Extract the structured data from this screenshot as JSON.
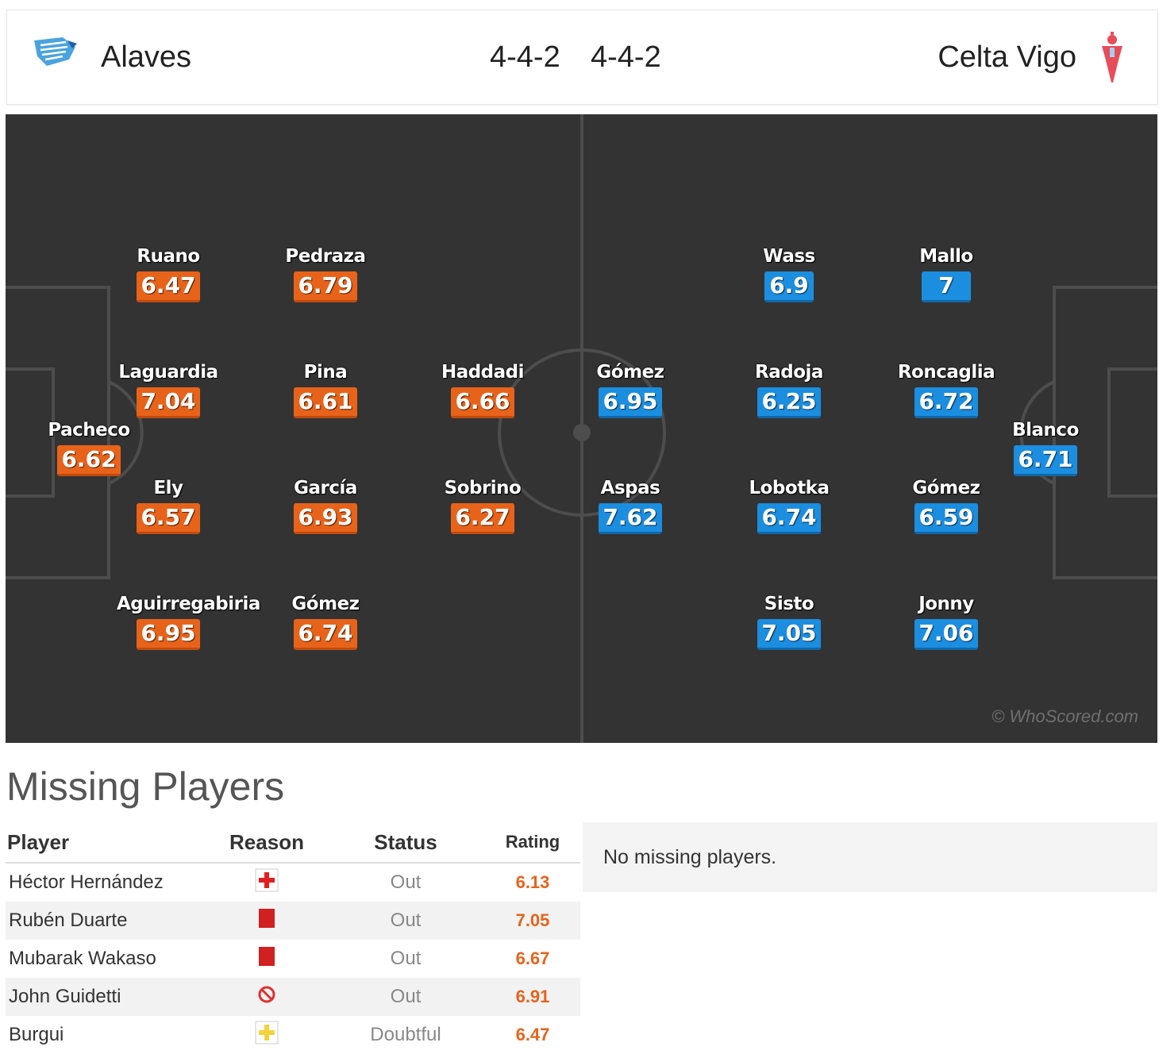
{
  "header": {
    "home_team": "Alaves",
    "home_formation": "4-4-2",
    "away_formation": "4-4-2",
    "away_team": "Celta Vigo"
  },
  "pitch": {
    "watermark": "© WhoScored.com",
    "home_players": [
      {
        "name": "Pacheco",
        "rating": "6.62"
      },
      {
        "name": "Ruano",
        "rating": "6.47"
      },
      {
        "name": "Laguardia",
        "rating": "7.04"
      },
      {
        "name": "Ely",
        "rating": "6.57"
      },
      {
        "name": "Aguirregabiria",
        "rating": "6.95"
      },
      {
        "name": "Pedraza",
        "rating": "6.79"
      },
      {
        "name": "Pina",
        "rating": "6.61"
      },
      {
        "name": "García",
        "rating": "6.93"
      },
      {
        "name": "Gómez",
        "rating": "6.74"
      },
      {
        "name": "Haddadi",
        "rating": "6.66"
      },
      {
        "name": "Sobrino",
        "rating": "6.27"
      }
    ],
    "away_players": [
      {
        "name": "Gómez",
        "rating": "6.95"
      },
      {
        "name": "Aspas",
        "rating": "7.62"
      },
      {
        "name": "Wass",
        "rating": "6.9"
      },
      {
        "name": "Radoja",
        "rating": "6.25"
      },
      {
        "name": "Lobotka",
        "rating": "6.74"
      },
      {
        "name": "Sisto",
        "rating": "7.05"
      },
      {
        "name": "Mallo",
        "rating": "7"
      },
      {
        "name": "Roncaglia",
        "rating": "6.72"
      },
      {
        "name": "Gómez",
        "rating": "6.59"
      },
      {
        "name": "Jonny",
        "rating": "7.06"
      },
      {
        "name": "Blanco",
        "rating": "6.71"
      }
    ]
  },
  "missing": {
    "title": "Missing Players",
    "headers": {
      "player": "Player",
      "reason": "Reason",
      "status": "Status",
      "rating": "Rating"
    },
    "rows": [
      {
        "player": "Héctor Hernández",
        "reason_icon": "injury-icon",
        "status": "Out",
        "rating": "6.13"
      },
      {
        "player": "Rubén Duarte",
        "reason_icon": "red-card-icon",
        "status": "Out",
        "rating": "7.05"
      },
      {
        "player": "Mubarak Wakaso",
        "reason_icon": "red-card-icon",
        "status": "Out",
        "rating": "6.67"
      },
      {
        "player": "John Guidetti",
        "reason_icon": "suspended-icon",
        "status": "Out",
        "rating": "6.91"
      },
      {
        "player": "Burgui",
        "reason_icon": "doubtful-icon",
        "status": "Doubtful",
        "rating": "6.47"
      }
    ],
    "away_empty_text": "No missing players."
  },
  "colors": {
    "home_rating": "#e8631a",
    "away_rating": "#1b8ee0",
    "pitch": "#333333"
  }
}
